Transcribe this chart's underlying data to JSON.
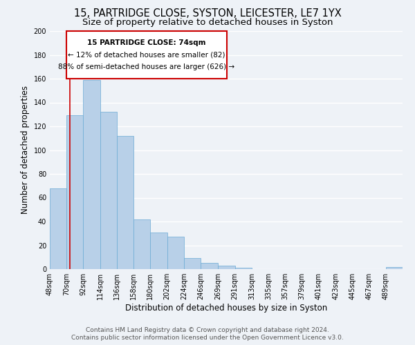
{
  "title": "15, PARTRIDGE CLOSE, SYSTON, LEICESTER, LE7 1YX",
  "subtitle": "Size of property relative to detached houses in Syston",
  "xlabel": "Distribution of detached houses by size in Syston",
  "ylabel": "Number of detached properties",
  "bar_color": "#b8d0e8",
  "bar_edge_color": "#6aaad4",
  "marker_line_color": "#cc0000",
  "marker_value": 74,
  "categories": [
    "48sqm",
    "70sqm",
    "92sqm",
    "114sqm",
    "136sqm",
    "158sqm",
    "180sqm",
    "202sqm",
    "224sqm",
    "246sqm",
    "269sqm",
    "291sqm",
    "313sqm",
    "335sqm",
    "357sqm",
    "379sqm",
    "401sqm",
    "423sqm",
    "445sqm",
    "467sqm",
    "489sqm"
  ],
  "values": [
    68,
    129,
    159,
    132,
    112,
    42,
    31,
    27,
    9,
    5,
    3,
    1,
    0,
    0,
    0,
    0,
    0,
    0,
    0,
    0,
    2
  ],
  "bin_edges": [
    48,
    70,
    92,
    114,
    136,
    158,
    180,
    202,
    224,
    246,
    269,
    291,
    313,
    335,
    357,
    379,
    401,
    423,
    445,
    467,
    489,
    511
  ],
  "ylim": [
    0,
    200
  ],
  "yticks": [
    0,
    20,
    40,
    60,
    80,
    100,
    120,
    140,
    160,
    180,
    200
  ],
  "annotation_text_line1": "15 PARTRIDGE CLOSE: 74sqm",
  "annotation_text_line2": "← 12% of detached houses are smaller (82)",
  "annotation_text_line3": "88% of semi-detached houses are larger (626) →",
  "footer_line1": "Contains HM Land Registry data © Crown copyright and database right 2024.",
  "footer_line2": "Contains public sector information licensed under the Open Government Licence v3.0.",
  "background_color": "#eef2f7",
  "plot_bg_color": "#eef2f7",
  "grid_color": "#ffffff",
  "title_fontsize": 10.5,
  "subtitle_fontsize": 9.5,
  "axis_label_fontsize": 8.5,
  "tick_fontsize": 7,
  "footer_fontsize": 6.5,
  "annotation_fontsize": 7.5
}
